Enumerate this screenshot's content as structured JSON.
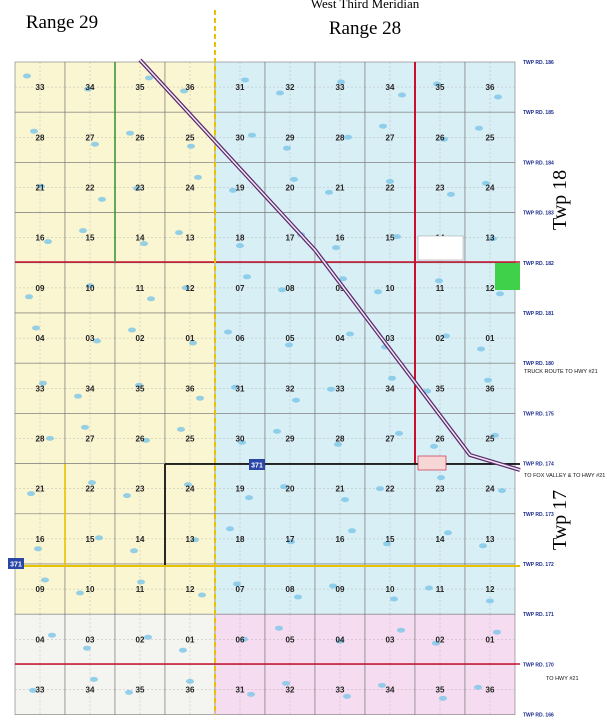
{
  "map": {
    "meridian": "West Third Meridian",
    "ranges": [
      "Range 29",
      "Range 28"
    ],
    "townships": [
      "Twp 18",
      "Twp 17"
    ],
    "sections": [
      [
        "33",
        "34",
        "35",
        "36",
        "31",
        "32",
        "33",
        "34",
        "35",
        "36"
      ],
      [
        "28",
        "27",
        "26",
        "25",
        "30",
        "29",
        "28",
        "27",
        "26",
        "25"
      ],
      [
        "21",
        "22",
        "23",
        "24",
        "19",
        "20",
        "21",
        "22",
        "23",
        "24"
      ],
      [
        "16",
        "15",
        "14",
        "13",
        "18",
        "17",
        "16",
        "15",
        "14",
        "13"
      ],
      [
        "09",
        "10",
        "11",
        "12",
        "07",
        "08",
        "09",
        "10",
        "11",
        "12"
      ],
      [
        "04",
        "03",
        "02",
        "01",
        "06",
        "05",
        "04",
        "03",
        "02",
        "01"
      ],
      [
        "33",
        "34",
        "35",
        "36",
        "31",
        "32",
        "33",
        "34",
        "35",
        "36"
      ],
      [
        "28",
        "27",
        "26",
        "25",
        "30",
        "29",
        "28",
        "27",
        "26",
        "25"
      ],
      [
        "21",
        "22",
        "23",
        "24",
        "19",
        "20",
        "21",
        "22",
        "23",
        "24"
      ],
      [
        "16",
        "15",
        "14",
        "13",
        "18",
        "17",
        "16",
        "15",
        "14",
        "13"
      ],
      [
        "09",
        "10",
        "11",
        "12",
        "07",
        "08",
        "09",
        "10",
        "11",
        "12"
      ],
      [
        "04",
        "03",
        "02",
        "01",
        "06",
        "05",
        "04",
        "03",
        "02",
        "01"
      ],
      [
        "33",
        "34",
        "35",
        "36",
        "31",
        "32",
        "33",
        "34",
        "35",
        "36"
      ]
    ],
    "township_roads": [
      "TWP RD. 186",
      "TWP RD. 185",
      "TWP RD. 184",
      "TWP RD. 183",
      "TWP RD. 182",
      "TWP RD. 181",
      "TWP RD. 180",
      "TWP RD. 175",
      "TWP RD. 174",
      "TWP RD. 173",
      "TWP RD. 172",
      "TWP RD. 171",
      "TWP RD. 170",
      "TWP RD. 166"
    ],
    "highway": "371",
    "notes": [
      "TRUCK ROUTE TO HWY #21",
      "TO FOX VALLEY & TO HWY #21",
      "TO HWY #21"
    ]
  }
}
